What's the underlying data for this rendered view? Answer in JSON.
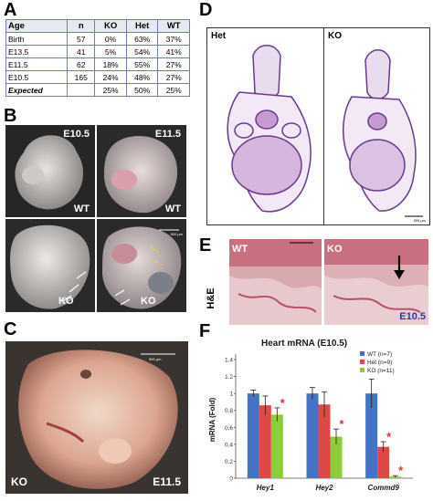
{
  "panels": {
    "A": "A",
    "B": "B",
    "C": "C",
    "D": "D",
    "E": "E",
    "F": "F"
  },
  "table": {
    "headers": [
      "Age",
      "n",
      "KO",
      "Het",
      "WT"
    ],
    "rows": [
      [
        "Birth",
        "57",
        "0%",
        "63%",
        "37%"
      ],
      [
        "E13.5",
        "41",
        "5%",
        "54%",
        "41%"
      ],
      [
        "E11.5",
        "62",
        "18%",
        "55%",
        "27%"
      ],
      [
        "E10.5",
        "165",
        "24%",
        "48%",
        "27%"
      ]
    ],
    "expected": [
      "Expected",
      "",
      "25%",
      "50%",
      "25%"
    ]
  },
  "panel_b": {
    "e105": "E10.5",
    "e115": "E11.5",
    "wt_top_left": "WT",
    "wt_top_right": "WT",
    "ko_bottom_left": "KO",
    "ko_bottom_right": "KO",
    "scale_text": "500 µm"
  },
  "panel_c": {
    "ko": "KO",
    "age": "E11.5",
    "scale_text": "500 µm"
  },
  "panel_d": {
    "het": "Het",
    "ko": "KO",
    "scale_text": "200 µm"
  },
  "panel_e": {
    "wt": "WT",
    "ko": "KO",
    "stain": "H&E",
    "age": "E10.5"
  },
  "colors": {
    "wt": "#4472c4",
    "het": "#e04848",
    "ko": "#8fcc3a",
    "sig": "#e03030"
  },
  "chart_data": {
    "type": "bar",
    "title": "Heart mRNA (E10.5)",
    "ylabel": "mRNA (Fold)",
    "xlabel": "",
    "categories": [
      "Hey1",
      "Hey2",
      "Commd9"
    ],
    "ylim": [
      0,
      1.4
    ],
    "yticks": [
      "0",
      "0.2",
      "0.4",
      "0.6",
      "0.8",
      "1",
      "1.2",
      "1.4"
    ],
    "legend": [
      "WT (n=7)",
      "Het (n=9)",
      "KO (n=11)"
    ],
    "legend_position": "top-right",
    "series": [
      {
        "name": "WT (n=7)",
        "values": [
          1.0,
          1.0,
          1.0
        ],
        "errors": [
          0.04,
          0.07,
          0.17
        ]
      },
      {
        "name": "Het (n=9)",
        "values": [
          0.86,
          0.87,
          0.37
        ],
        "errors": [
          0.11,
          0.15,
          0.06
        ]
      },
      {
        "name": "KO (n=11)",
        "values": [
          0.75,
          0.49,
          0.02
        ],
        "errors": [
          0.08,
          0.09,
          0.01
        ]
      }
    ],
    "significance": [
      {
        "category": "Hey1",
        "series": "KO (n=11)",
        "mark": "*"
      },
      {
        "category": "Hey2",
        "series": "KO (n=11)",
        "mark": "*"
      },
      {
        "category": "Commd9",
        "series": "Het (n=9)",
        "mark": "*"
      },
      {
        "category": "Commd9",
        "series": "KO (n=11)",
        "mark": "*"
      }
    ]
  }
}
